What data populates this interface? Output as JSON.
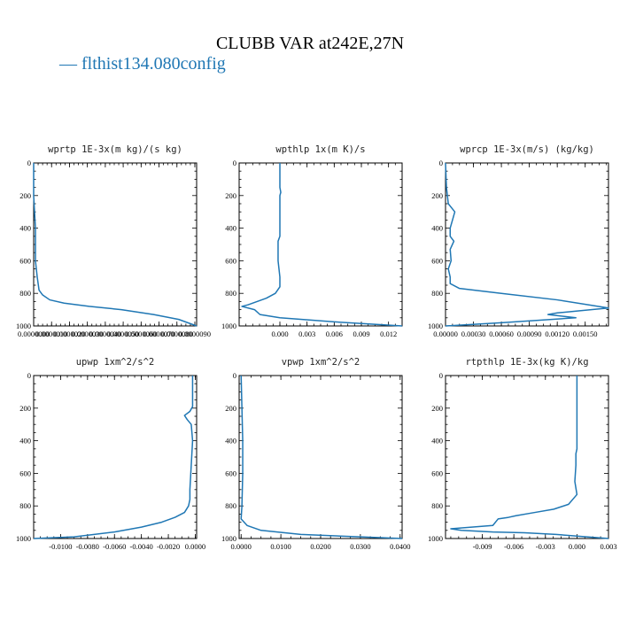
{
  "figure": {
    "title": "CLUBB VAR at242E,27N",
    "legend_label": "— flthist134.080config",
    "legend_color": "#1f77b4"
  },
  "chart_data": [
    {
      "type": "line",
      "title": "wprtp  1E-3x(m kg)/(s kg)",
      "xlim": [
        1e-07,
        9.2e-06
      ],
      "ylim": [
        1000,
        0
      ],
      "y_ticks": [
        "0",
        "200",
        "400",
        "600",
        "800",
        "1000"
      ],
      "x_ticks": [
        {
          "v": 1e-07,
          "label": "0.0000000"
        },
        {
          "v": 1.1e-06,
          "label": "0.0000010"
        },
        {
          "v": 2.1e-06,
          "label": "0.0000020"
        },
        {
          "v": 3.1e-06,
          "label": "0.0000030"
        },
        {
          "v": 4.1e-06,
          "label": "0.0000040"
        },
        {
          "v": 5.1e-06,
          "label": "0.0000050"
        },
        {
          "v": 6.1e-06,
          "label": "0.0000060"
        },
        {
          "v": 7.1e-06,
          "label": "0.0000070"
        },
        {
          "v": 8.1e-06,
          "label": "0.0000080"
        },
        {
          "v": 9.1e-06,
          "label": "0.0000090"
        }
      ],
      "series": [
        {
          "color": "#1f77b4",
          "x": [
            1e-07,
            1e-07,
            2e-07,
            2e-07,
            3e-07,
            4e-07,
            6e-07,
            1e-06,
            1.8e-06,
            3.2e-06,
            5e-06,
            6.8e-06,
            8.2e-06,
            9.2e-06
          ],
          "y": [
            0,
            200,
            400,
            600,
            700,
            780,
            810,
            840,
            860,
            880,
            900,
            930,
            960,
            1000
          ]
        }
      ]
    },
    {
      "type": "line",
      "title": "wpthlp  1x(m K)/s",
      "xlim": [
        -0.0045,
        0.0135
      ],
      "ylim": [
        1000,
        0
      ],
      "y_ticks": [
        "0",
        "200",
        "400",
        "600",
        "800",
        "1000"
      ],
      "x_ticks": [
        {
          "v": 0.0,
          "label": "0.000"
        },
        {
          "v": 0.003,
          "label": "0.003"
        },
        {
          "v": 0.006,
          "label": "0.006"
        },
        {
          "v": 0.009,
          "label": "0.009"
        },
        {
          "v": 0.012,
          "label": "0.012"
        }
      ],
      "series": [
        {
          "color": "#1f77b4",
          "x": [
            0.0,
            0.0,
            0.0001,
            0.0,
            0.0,
            -0.0002,
            -0.0002,
            0.0,
            0.0,
            -0.0005,
            -0.0015,
            -0.0035,
            -0.0042,
            -0.0028,
            -0.0022,
            0.0,
            0.006,
            0.0135
          ],
          "y": [
            0,
            150,
            180,
            200,
            450,
            480,
            600,
            700,
            760,
            800,
            830,
            870,
            880,
            900,
            930,
            950,
            975,
            1000
          ]
        }
      ]
    },
    {
      "type": "line",
      "title": "wprcp  1E-3x(m/s) (kg/kg)",
      "xlim": [
        0.0,
        0.00175
      ],
      "ylim": [
        1000,
        0
      ],
      "y_ticks": [
        "0",
        "200",
        "400",
        "600",
        "800",
        "1000"
      ],
      "x_ticks": [
        {
          "v": 0.0,
          "label": "0.00000"
        },
        {
          "v": 0.0003,
          "label": "0.00030"
        },
        {
          "v": 0.0006,
          "label": "0.00060"
        },
        {
          "v": 0.0009,
          "label": "0.00090"
        },
        {
          "v": 0.0012,
          "label": "0.00120"
        },
        {
          "v": 0.0015,
          "label": "0.00150"
        }
      ],
      "series": [
        {
          "color": "#1f77b4",
          "x": [
            0.0,
            1e-05,
            3e-05,
            0.0001,
            5e-05,
            5e-05,
            9e-05,
            5e-05,
            6e-05,
            3e-05,
            5e-05,
            5e-05,
            0.00015,
            0.0006,
            0.0012,
            0.00175,
            0.0012,
            0.0011,
            0.0014,
            0.0006,
            0.0
          ],
          "y": [
            0,
            150,
            250,
            300,
            400,
            450,
            480,
            530,
            600,
            650,
            700,
            740,
            770,
            800,
            840,
            890,
            920,
            930,
            950,
            980,
            1000
          ]
        }
      ]
    },
    {
      "type": "line",
      "title": "upwp  1xm^2/s^2",
      "xlim": [
        -0.012,
        0.0001
      ],
      "ylim": [
        1000,
        0
      ],
      "y_ticks": [
        "0",
        "200",
        "400",
        "600",
        "800",
        "1000"
      ],
      "x_ticks": [
        {
          "v": -0.01,
          "label": "-0.0100"
        },
        {
          "v": -0.008,
          "label": "-0.0080"
        },
        {
          "v": -0.006,
          "label": "-0.0060"
        },
        {
          "v": -0.004,
          "label": "-0.0040"
        },
        {
          "v": -0.002,
          "label": "-0.0020"
        },
        {
          "v": 0.0,
          "label": "0.0000"
        }
      ],
      "series": [
        {
          "color": "#1f77b4",
          "x": [
            -0.0002,
            -0.0002,
            -0.0004,
            -0.0008,
            -0.0006,
            -0.0003,
            -0.0002,
            -0.0003,
            -0.0004,
            -0.0004,
            -0.0005,
            -0.0008,
            -0.0015,
            -0.0025,
            -0.004,
            -0.006,
            -0.009,
            -0.012
          ],
          "y": [
            0,
            190,
            220,
            245,
            270,
            300,
            400,
            550,
            700,
            760,
            800,
            840,
            870,
            900,
            930,
            960,
            990,
            1000
          ]
        }
      ]
    },
    {
      "type": "line",
      "title": "vpwp  1xm^2/s^2",
      "xlim": [
        -0.0005,
        0.0405
      ],
      "ylim": [
        1000,
        0
      ],
      "y_ticks": [
        "0",
        "200",
        "400",
        "600",
        "800",
        "1000"
      ],
      "x_ticks": [
        {
          "v": 0.0,
          "label": "0.0000"
        },
        {
          "v": 0.01,
          "label": "0.0100"
        },
        {
          "v": 0.02,
          "label": "0.0200"
        },
        {
          "v": 0.03,
          "label": "0.0300"
        },
        {
          "v": 0.04,
          "label": "0.0400"
        }
      ],
      "series": [
        {
          "color": "#1f77b4",
          "x": [
            0.0,
            0.0002,
            0.0003,
            0.0004,
            0.0004,
            0.0002,
            0.0,
            0.0015,
            0.005,
            0.015,
            0.03,
            0.0405
          ],
          "y": [
            0,
            200,
            300,
            400,
            600,
            800,
            880,
            920,
            950,
            975,
            990,
            1000
          ]
        }
      ]
    },
    {
      "type": "line",
      "title": "rtpthlp  1E-3x(kg K)/kg",
      "xlim": [
        -0.0125,
        0.003
      ],
      "ylim": [
        1000,
        0
      ],
      "y_ticks": [
        "0",
        "200",
        "400",
        "600",
        "800",
        "1000"
      ],
      "x_ticks": [
        {
          "v": -0.009,
          "label": "-0.009"
        },
        {
          "v": -0.006,
          "label": "-0.006"
        },
        {
          "v": -0.003,
          "label": "-0.003"
        },
        {
          "v": 0.0,
          "label": "0.000"
        },
        {
          "v": 0.003,
          "label": "0.003"
        }
      ],
      "series": [
        {
          "color": "#1f77b4",
          "x": [
            0.0,
            0.0,
            -0.0001,
            -0.0001,
            -0.0002,
            0.0,
            -0.0008,
            -0.0022,
            -0.004,
            -0.0058,
            -0.0065,
            -0.0075,
            -0.008,
            -0.012,
            -0.011,
            -0.008,
            -0.005,
            -0.002,
            0.003
          ],
          "y": [
            0,
            450,
            480,
            550,
            650,
            730,
            790,
            820,
            840,
            860,
            870,
            880,
            920,
            940,
            950,
            960,
            965,
            975,
            1000
          ]
        }
      ]
    }
  ]
}
